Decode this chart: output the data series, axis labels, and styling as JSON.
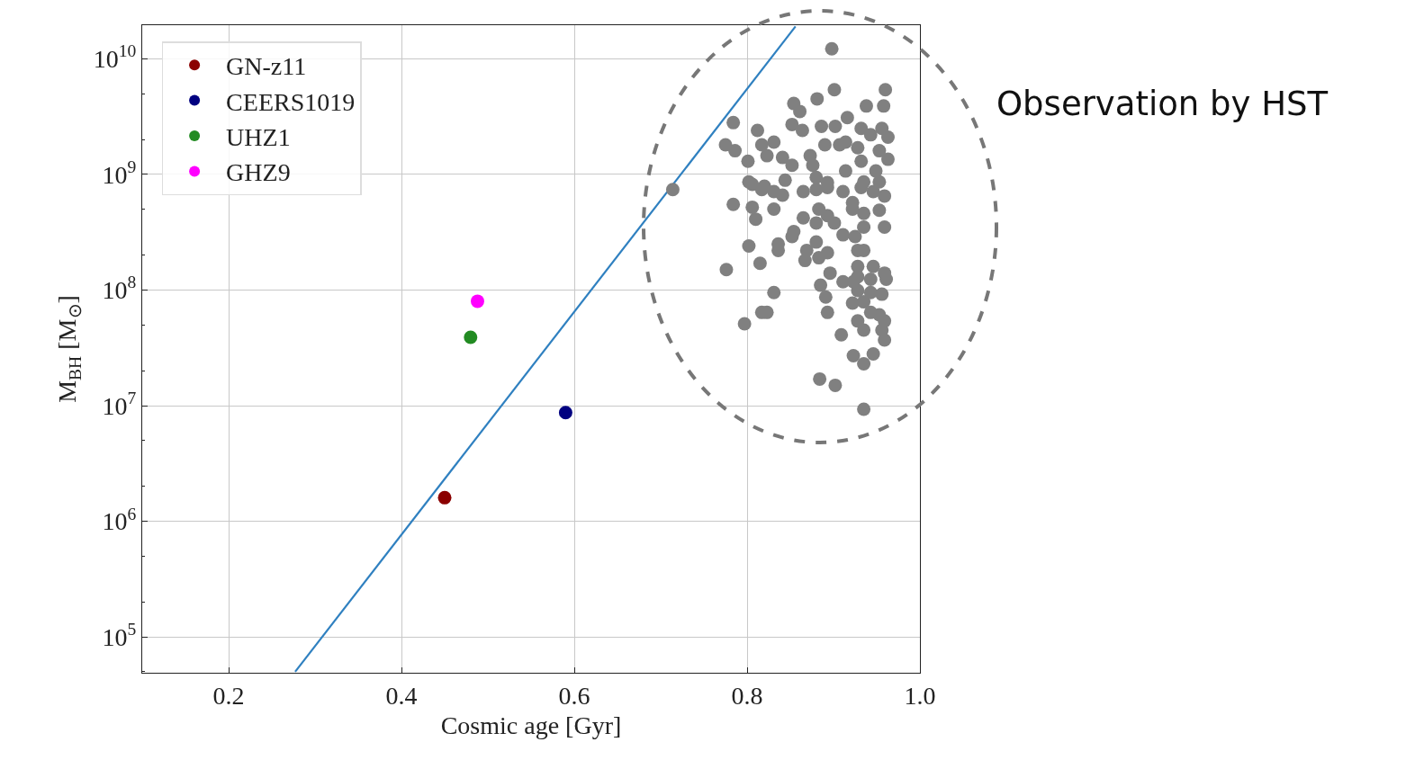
{
  "chart_data": {
    "type": "scatter",
    "xlabel": "Cosmic age [Gyr]",
    "ylabel": "M$_{BH}$ [M$_{⊙}$]",
    "xlim": [
      0.1,
      1.0
    ],
    "xticks": [
      0.2,
      0.4,
      0.6,
      0.8,
      {
        "value": 1.0,
        "label": "1.0"
      }
    ],
    "ylim": [
      49000.0,
      19500000000.0
    ],
    "yticks": [
      {
        "value": 100000.0,
        "label": "10$^{5}$"
      },
      {
        "value": 1000000.0,
        "label": "10$^{6}$"
      },
      {
        "value": 10000000.0,
        "label": "10$^{7}$"
      },
      {
        "value": 100000000.0,
        "label": "10$^{8}$"
      },
      {
        "value": 1000000000.0,
        "label": "10$^{9}$"
      },
      {
        "value": 10000000000.0,
        "label": "10$^{10}$"
      }
    ],
    "log": "y",
    "grid": true,
    "legend": "top left",
    "marker": "circle",
    "annotations": [
      "Observation by HST"
    ],
    "series": [
      {
        "name": "GN-z11",
        "color": "#8b0000",
        "x": [
          0.45
        ],
        "values": [
          1600000.0
        ]
      },
      {
        "name": "CEERS1019",
        "color": "#000080",
        "x": [
          0.59
        ],
        "values": [
          8700000.0
        ]
      },
      {
        "name": "UHZ1",
        "color": "#228b22",
        "x": [
          0.48
        ],
        "values": [
          39000000.0
        ]
      },
      {
        "name": "GHZ9",
        "color": "#ff00ff",
        "x": [
          0.488
        ],
        "values": [
          80000000.0
        ]
      },
      {
        "type": "line",
        "marker": "none",
        "color": "#2f80c0",
        "x": [
          0.277,
          0.856
        ],
        "values": [
          50000.0,
          19000000000.0
        ]
      },
      {
        "color": "#808080",
        "x": [
          0.898,
          0.901,
          0.96,
          0.854,
          0.861,
          0.881,
          0.938,
          0.958,
          0.916,
          0.784,
          0.812,
          0.852,
          0.864,
          0.886,
          0.902,
          0.775,
          0.786,
          0.817,
          0.831,
          0.801,
          0.823,
          0.841,
          0.852,
          0.873,
          0.89,
          0.907,
          0.914,
          0.932,
          0.943,
          0.956,
          0.963,
          0.928,
          0.953,
          0.963,
          0.914,
          0.932,
          0.949,
          0.876,
          0.802,
          0.82,
          0.844,
          0.88,
          0.893,
          0.935,
          0.953,
          0.714,
          0.806,
          0.817,
          0.831,
          0.841,
          0.865,
          0.88,
          0.893,
          0.911,
          0.932,
          0.946,
          0.959,
          0.784,
          0.806,
          0.81,
          0.831,
          0.865,
          0.88,
          0.883,
          0.893,
          0.901,
          0.922,
          0.922,
          0.935,
          0.953,
          0.959,
          0.911,
          0.925,
          0.935,
          0.854,
          0.852,
          0.802,
          0.836,
          0.836,
          0.869,
          0.88,
          0.893,
          0.883,
          0.928,
          0.935,
          0.867,
          0.815,
          0.776,
          0.896,
          0.928,
          0.946,
          0.959,
          0.928,
          0.943,
          0.961,
          0.911,
          0.923,
          0.885,
          0.831,
          0.891,
          0.928,
          0.943,
          0.956,
          0.922,
          0.935,
          0.943,
          0.953,
          0.959,
          0.817,
          0.823,
          0.893,
          0.928,
          0.935,
          0.956,
          0.959,
          0.797,
          0.909,
          0.923,
          0.946,
          0.935,
          0.884,
          0.902,
          0.935
        ],
        "values": [
          12200000000.0,
          5400000000.0,
          5400000000.0,
          4100000000.0,
          3500000000.0,
          4500000000.0,
          3900000000.0,
          3900000000.0,
          3100000000.0,
          2800000000.0,
          2400000000.0,
          2700000000.0,
          2400000000.0,
          2600000000.0,
          2600000000.0,
          1800000000.0,
          1600000000.0,
          1800000000.0,
          1900000000.0,
          1300000000.0,
          1450000000.0,
          1400000000.0,
          1200000000.0,
          1450000000.0,
          1800000000.0,
          1800000000.0,
          1900000000.0,
          2500000000.0,
          2200000000.0,
          2500000000.0,
          2100000000.0,
          1700000000.0,
          1600000000.0,
          1350000000.0,
          1070000000.0,
          1300000000.0,
          1070000000.0,
          1200000000.0,
          860000000.0,
          790000000.0,
          890000000.0,
          940000000.0,
          850000000.0,
          860000000.0,
          860000000.0,
          740000000.0,
          820000000.0,
          740000000.0,
          710000000.0,
          660000000.0,
          710000000.0,
          740000000.0,
          770000000.0,
          710000000.0,
          770000000.0,
          710000000.0,
          650000000.0,
          550000000.0,
          520000000.0,
          410000000.0,
          500000000.0,
          420000000.0,
          380000000.0,
          500000000.0,
          440000000.0,
          380000000.0,
          570000000.0,
          500000000.0,
          460000000.0,
          490000000.0,
          350000000.0,
          300000000.0,
          290000000.0,
          350000000.0,
          320000000.0,
          290000000.0,
          240000000.0,
          250000000.0,
          220000000.0,
          220000000.0,
          260000000.0,
          210000000.0,
          190000000.0,
          220000000.0,
          220000000.0,
          180000000.0,
          170000000.0,
          150000000.0,
          140000000.0,
          160000000.0,
          160000000.0,
          140000000.0,
          130000000.0,
          124000000.0,
          124000000.0,
          118000000.0,
          118000000.0,
          110000000.0,
          95000000.0,
          87000000.0,
          99000000.0,
          95000000.0,
          92000000.0,
          77000000.0,
          79000000.0,
          64000000.0,
          61000000.0,
          54000000.0,
          64000000.0,
          64000000.0,
          64000000.0,
          54000000.0,
          45000000.0,
          45000000.0,
          37000000.0,
          51000000.0,
          41000000.0,
          27000000.0,
          28000000.0,
          23000000.0,
          17000000.0,
          15000000.0,
          9300000.0
        ]
      }
    ]
  }
}
